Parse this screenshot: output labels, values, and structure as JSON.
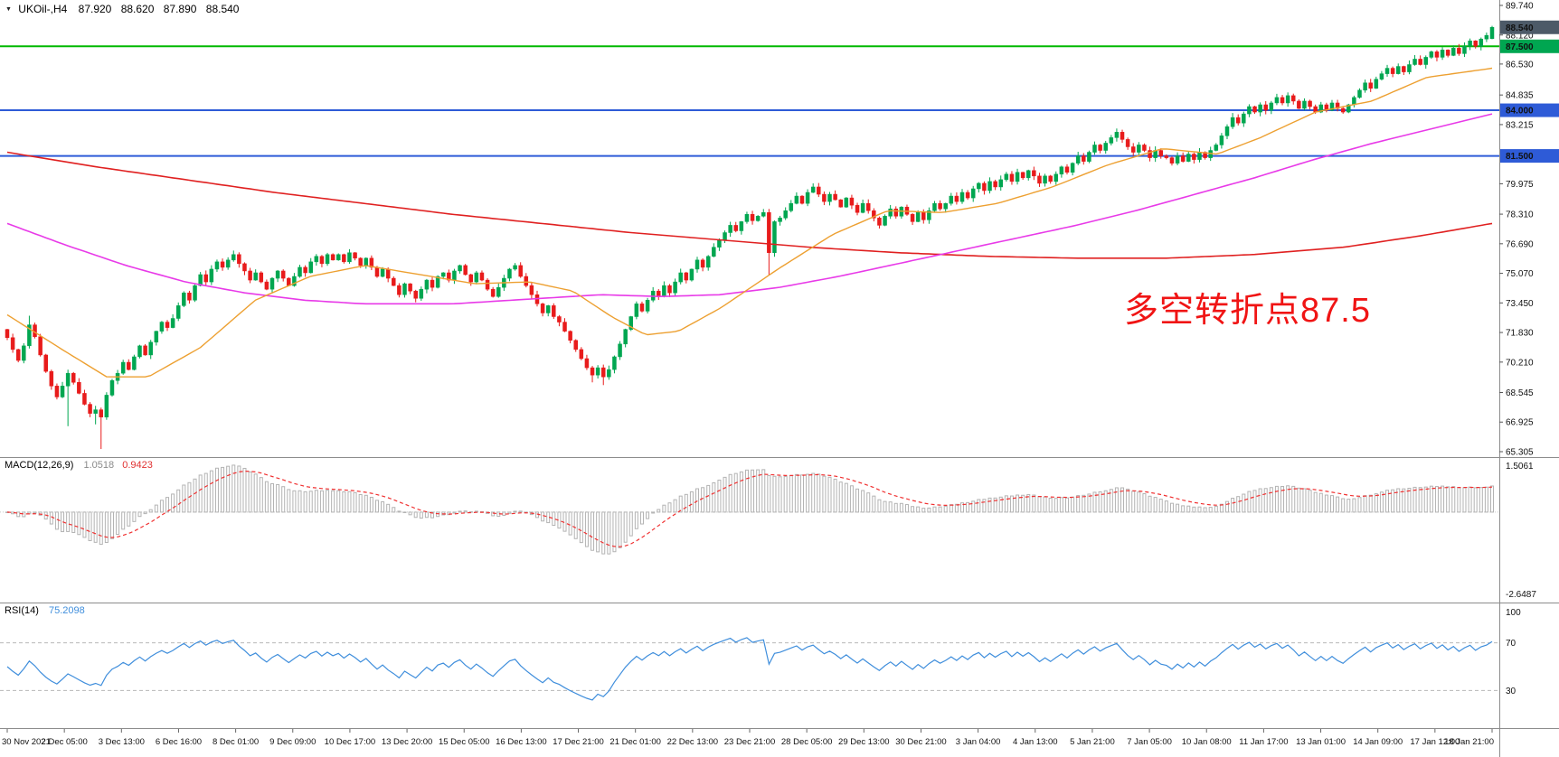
{
  "header": {
    "instrument": "UKOil-,H4",
    "open": "87.920",
    "high": "88.620",
    "low": "87.890",
    "close": "88.540"
  },
  "annotation": {
    "text": "多空转折点87.5",
    "color": "#f01414"
  },
  "macd_panel": {
    "label": "MACD(12,26,9)",
    "macd_value": "1.0518",
    "signal_value": "0.9423",
    "axis_top": "1.5061",
    "axis_bottom": "-2.6487"
  },
  "rsi_panel": {
    "label": "RSI(14)",
    "value": "75.2098",
    "axis_labels": [
      "100",
      "70",
      "30"
    ]
  },
  "colors": {
    "bull": "#00a650",
    "bear": "#e81b1b",
    "background": "#ffffff",
    "divider": "#8c8c8c",
    "axis_text": "#111111"
  },
  "chart_data": {
    "type": "candlestick",
    "symbol": "UKOil-",
    "timeframe": "H4",
    "title": "UKOil-,H4 87.920 88.620 87.890 88.540",
    "last_ohlc": {
      "open": 87.92,
      "high": 88.62,
      "low": 87.89,
      "close": 88.54
    },
    "price_axis": {
      "max": 89.74,
      "min": 65.305,
      "ticks": [
        {
          "label": "89.740",
          "price": 89.74
        },
        {
          "label": "88.120",
          "price": 88.12
        },
        {
          "label": "86.530",
          "price": 86.53
        },
        {
          "label": "84.835",
          "price": 84.835
        },
        {
          "label": "83.215",
          "price": 83.215
        },
        {
          "label": "79.975",
          "price": 79.975
        },
        {
          "label": "78.310",
          "price": 78.31
        },
        {
          "label": "76.690",
          "price": 76.69
        },
        {
          "label": "75.070",
          "price": 75.07
        },
        {
          "label": "73.450",
          "price": 73.45
        },
        {
          "label": "71.830",
          "price": 71.83
        },
        {
          "label": "70.210",
          "price": 70.21
        },
        {
          "label": "68.545",
          "price": 68.545
        },
        {
          "label": "66.925",
          "price": 66.925
        },
        {
          "label": "65.305",
          "price": 65.305
        }
      ]
    },
    "badges": [
      {
        "name": "current-price",
        "label": "88.540",
        "price": 88.54,
        "color": "#4d5a68"
      },
      {
        "name": "level-87.5",
        "label": "87.500",
        "price": 87.5,
        "color": "#00a651"
      },
      {
        "name": "level-84.0",
        "label": "84.000",
        "price": 84.0,
        "color": "#2e5bd7"
      },
      {
        "name": "level-81.5",
        "label": "81.500",
        "price": 81.5,
        "color": "#2e5bd7"
      }
    ],
    "hlines": [
      {
        "price": 87.5,
        "color": "#00b800"
      },
      {
        "price": 84.0,
        "color": "#2e5bd7"
      },
      {
        "price": 81.5,
        "color": "#2e5bd7"
      }
    ],
    "time_labels": [
      "30 Nov 2021",
      "2 Dec 05:00",
      "3 Dec 13:00",
      "6 Dec 16:00",
      "8 Dec 01:00",
      "9 Dec 09:00",
      "10 Dec 17:00",
      "13 Dec 20:00",
      "15 Dec 05:00",
      "16 Dec 13:00",
      "17 Dec 21:00",
      "21 Dec 01:00",
      "22 Dec 13:00",
      "23 Dec 21:00",
      "28 Dec 05:00",
      "29 Dec 13:00",
      "30 Dec 21:00",
      "3 Jan 04:00",
      "4 Jan 13:00",
      "5 Jan 21:00",
      "7 Jan 05:00",
      "10 Jan 08:00",
      "11 Jan 17:00",
      "13 Jan 01:00",
      "14 Jan 09:00",
      "17 Jan 12:00",
      "18 Jan 21:00"
    ],
    "first_open": 72.0,
    "closes": [
      71.55,
      70.9,
      70.3,
      71.1,
      72.25,
      71.6,
      70.6,
      69.7,
      68.9,
      68.3,
      68.9,
      69.6,
      69.1,
      68.5,
      67.9,
      67.4,
      67.6,
      67.2,
      68.4,
      69.2,
      69.6,
      70.2,
      69.8,
      70.5,
      71.1,
      70.6,
      71.3,
      71.9,
      72.4,
      72.1,
      72.6,
      73.3,
      74.0,
      73.6,
      74.4,
      75.0,
      74.6,
      75.3,
      75.7,
      75.4,
      75.8,
      76.1,
      75.6,
      75.2,
      74.7,
      75.1,
      74.6,
      74.2,
      74.8,
      75.2,
      74.8,
      74.4,
      74.9,
      75.4,
      75.1,
      75.7,
      76.0,
      75.6,
      76.1,
      75.8,
      76.1,
      75.7,
      76.2,
      75.9,
      75.5,
      75.9,
      75.4,
      74.9,
      75.3,
      74.8,
      74.4,
      73.9,
      74.5,
      74.1,
      73.7,
      74.2,
      74.7,
      74.3,
      74.9,
      75.1,
      74.7,
      75.2,
      75.5,
      75.0,
      74.6,
      75.1,
      74.7,
      74.2,
      73.8,
      74.3,
      74.8,
      75.3,
      75.5,
      74.9,
      74.4,
      73.9,
      73.4,
      72.9,
      73.3,
      72.7,
      72.4,
      71.9,
      71.4,
      70.9,
      70.4,
      69.9,
      69.5,
      69.9,
      69.4,
      69.8,
      70.5,
      71.2,
      72.0,
      72.7,
      73.4,
      73.0,
      73.6,
      74.1,
      73.8,
      74.4,
      74.0,
      74.6,
      75.1,
      74.7,
      75.3,
      75.8,
      75.4,
      76.0,
      76.5,
      76.9,
      77.3,
      77.7,
      77.4,
      77.9,
      78.3,
      77.95,
      78.2,
      78.4,
      76.2,
      77.9,
      78.1,
      78.5,
      78.9,
      79.3,
      78.9,
      79.5,
      79.8,
      79.4,
      79.0,
      79.4,
      79.1,
      78.7,
      79.2,
      78.8,
      78.4,
      78.9,
      78.5,
      78.1,
      77.7,
      78.2,
      78.6,
      78.2,
      78.7,
      78.3,
      77.9,
      78.4,
      78.0,
      78.5,
      78.9,
      78.6,
      78.9,
      79.3,
      79.0,
      79.5,
      79.2,
      79.7,
      80.0,
      79.6,
      80.1,
      79.8,
      80.2,
      80.5,
      80.1,
      80.6,
      80.3,
      80.7,
      80.4,
      80.0,
      80.4,
      80.1,
      80.5,
      80.9,
      80.6,
      81.1,
      81.5,
      81.2,
      81.7,
      82.1,
      81.8,
      82.2,
      82.5,
      82.8,
      82.4,
      82.0,
      81.7,
      82.1,
      81.8,
      81.4,
      81.8,
      81.5,
      81.4,
      81.1,
      81.5,
      81.2,
      81.6,
      81.3,
      81.7,
      81.4,
      81.8,
      82.1,
      82.6,
      83.1,
      83.6,
      83.3,
      83.8,
      84.2,
      83.9,
      84.3,
      84.0,
      84.4,
      84.7,
      84.4,
      84.8,
      84.5,
      84.1,
      84.5,
      84.2,
      83.9,
      84.3,
      84.0,
      84.4,
      84.1,
      83.9,
      84.3,
      84.7,
      85.1,
      85.5,
      85.2,
      85.7,
      86.0,
      86.3,
      86.0,
      86.4,
      86.1,
      86.5,
      86.8,
      86.5,
      86.9,
      87.2,
      86.9,
      87.3,
      87.0,
      87.4,
      87.1,
      87.5,
      87.8,
      87.5,
      87.9,
      88.1,
      88.54
    ],
    "wick_overrides": {
      "4": {
        "high": 72.75
      },
      "11": {
        "low": 66.7
      },
      "16": {
        "low": 66.8
      },
      "17": {
        "low": 65.45
      },
      "106": {
        "low": 69.1
      },
      "108": {
        "low": 68.95
      },
      "138": {
        "low": 74.95
      },
      "201": {
        "high": 83.0
      },
      "222": {
        "high": 83.85
      },
      "269": {
        "open": 87.92,
        "high": 88.62,
        "low": 87.89,
        "close": 88.54
      }
    },
    "ma_fast": {
      "color": "#eda031",
      "anchors": [
        [
          0,
          72.8
        ],
        [
          0.037,
          70.9
        ],
        [
          0.067,
          69.4
        ],
        [
          0.095,
          69.4
        ],
        [
          0.13,
          71.0
        ],
        [
          0.167,
          73.6
        ],
        [
          0.204,
          74.9
        ],
        [
          0.241,
          75.5
        ],
        [
          0.278,
          75.0
        ],
        [
          0.315,
          74.5
        ],
        [
          0.352,
          74.6
        ],
        [
          0.381,
          74.1
        ],
        [
          0.407,
          72.7
        ],
        [
          0.43,
          71.7
        ],
        [
          0.452,
          71.9
        ],
        [
          0.481,
          73.2
        ],
        [
          0.519,
          75.3
        ],
        [
          0.556,
          77.2
        ],
        [
          0.593,
          78.5
        ],
        [
          0.63,
          78.4
        ],
        [
          0.667,
          78.9
        ],
        [
          0.704,
          79.8
        ],
        [
          0.741,
          81.0
        ],
        [
          0.778,
          81.9
        ],
        [
          0.815,
          81.6
        ],
        [
          0.844,
          82.5
        ],
        [
          0.881,
          83.9
        ],
        [
          0.919,
          84.5
        ],
        [
          0.956,
          85.8
        ],
        [
          1,
          86.3
        ]
      ]
    },
    "ma_mid": {
      "color": "#e83ae8",
      "anchors": [
        [
          0,
          77.8
        ],
        [
          0.04,
          76.6
        ],
        [
          0.08,
          75.5
        ],
        [
          0.12,
          74.6
        ],
        [
          0.16,
          74.0
        ],
        [
          0.2,
          73.6
        ],
        [
          0.24,
          73.4
        ],
        [
          0.3,
          73.4
        ],
        [
          0.36,
          73.7
        ],
        [
          0.4,
          73.9
        ],
        [
          0.44,
          73.8
        ],
        [
          0.48,
          73.9
        ],
        [
          0.52,
          74.3
        ],
        [
          0.56,
          74.9
        ],
        [
          0.6,
          75.6
        ],
        [
          0.64,
          76.3
        ],
        [
          0.68,
          77.0
        ],
        [
          0.72,
          77.7
        ],
        [
          0.76,
          78.5
        ],
        [
          0.8,
          79.4
        ],
        [
          0.84,
          80.3
        ],
        [
          0.88,
          81.3
        ],
        [
          0.92,
          82.2
        ],
        [
          0.96,
          83.0
        ],
        [
          1,
          83.8
        ]
      ]
    },
    "ma_slow": {
      "color": "#e02020",
      "anchors": [
        [
          0,
          81.7
        ],
        [
          0.06,
          80.9
        ],
        [
          0.12,
          80.2
        ],
        [
          0.18,
          79.5
        ],
        [
          0.24,
          78.9
        ],
        [
          0.3,
          78.3
        ],
        [
          0.36,
          77.8
        ],
        [
          0.42,
          77.3
        ],
        [
          0.48,
          76.9
        ],
        [
          0.54,
          76.5
        ],
        [
          0.6,
          76.2
        ],
        [
          0.66,
          76.0
        ],
        [
          0.72,
          75.9
        ],
        [
          0.78,
          75.9
        ],
        [
          0.84,
          76.1
        ],
        [
          0.9,
          76.5
        ],
        [
          0.95,
          77.1
        ],
        [
          1,
          77.8
        ]
      ]
    },
    "macd": {
      "params": [
        12,
        26,
        9
      ],
      "range": [
        -2.6487,
        1.5061
      ],
      "current": 1.0518,
      "current_signal": 0.9423,
      "histogram_color": "#b3b3b3",
      "signal_color": "#f03030"
    },
    "rsi": {
      "period": 14,
      "current": 75.2098,
      "levels": [
        70,
        30
      ],
      "range": [
        0,
        100
      ],
      "line_color": "#3f8edc"
    }
  }
}
